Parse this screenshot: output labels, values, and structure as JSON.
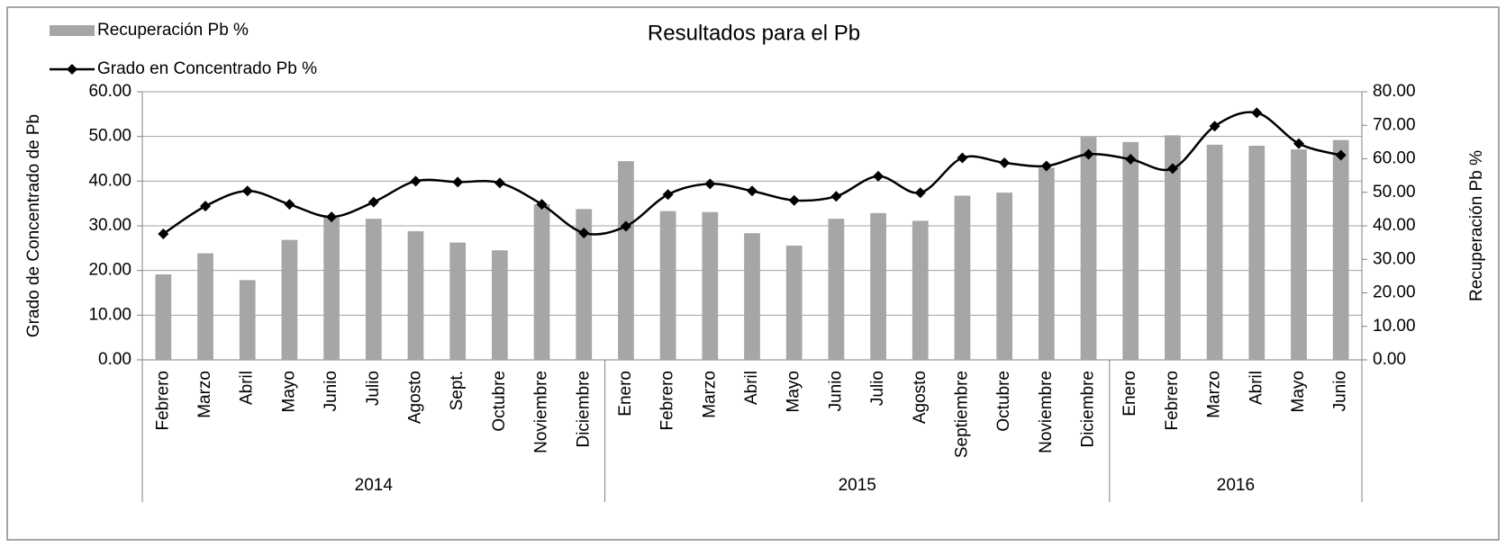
{
  "chart_data": {
    "type": "bar-line",
    "title": "Resultados para el Pb",
    "y_label": "Grado de Concentrado de Pb",
    "y2_label": "Recuperación Pb %",
    "category_groups": [
      {
        "name": "2014",
        "categories": [
          "Febrero",
          "Marzo",
          "Abril",
          "Mayo",
          "Junio",
          "Julio",
          "Agosto",
          "Sept.",
          "Octubre",
          "Noviembre",
          "Diciembre"
        ]
      },
      {
        "name": "2015",
        "categories": [
          "Enero",
          "Febrero",
          "Marzo",
          "Abril",
          "Mayo",
          "Junio",
          "Julio",
          "Agosto",
          "Septiembre",
          "Octubre",
          "Noviembre",
          "Diciembre"
        ]
      },
      {
        "name": "2016",
        "categories": [
          "Enero",
          "Febrero",
          "Marzo",
          "Abril",
          "Mayo",
          "Junio"
        ]
      }
    ],
    "series": [
      {
        "name": "Recuperación Pb %",
        "type": "bar",
        "axis": "y2",
        "color": "#a6a6a6",
        "values": [
          25.5,
          31.8,
          23.8,
          35.8,
          42.5,
          42.1,
          38.4,
          35.0,
          32.7,
          46.4,
          45.0,
          59.3,
          44.4,
          44.1,
          37.8,
          34.1,
          42.1,
          43.8,
          41.5,
          49.0,
          49.9,
          57.3,
          66.5,
          65.0,
          67.0,
          64.2,
          63.9,
          62.8,
          65.6
        ]
      },
      {
        "name": "Grado en Concentrado Pb %",
        "type": "line",
        "axis": "y",
        "color": "#000000",
        "values": [
          28.2,
          34.4,
          37.8,
          34.8,
          32.0,
          35.3,
          40.0,
          39.8,
          39.6,
          34.8,
          28.4,
          29.9,
          37.0,
          39.4,
          37.8,
          35.7,
          36.6,
          41.1,
          37.4,
          45.2,
          44.1,
          43.4,
          46.0,
          44.9,
          42.8,
          52.3,
          55.3,
          48.4,
          45.8
        ]
      }
    ],
    "ylim": [
      0,
      60
    ],
    "yticks": [
      {
        "value": 0,
        "label": "0.00"
      },
      {
        "value": 10,
        "label": "10.00"
      },
      {
        "value": 20,
        "label": "20.00"
      },
      {
        "value": 30,
        "label": "30.00"
      },
      {
        "value": 40,
        "label": "40.00"
      },
      {
        "value": 50,
        "label": "50.00"
      },
      {
        "value": 60,
        "label": "60.00"
      }
    ],
    "y2lim": [
      0,
      80
    ],
    "y2ticks": [
      {
        "value": 0,
        "label": "0.00"
      },
      {
        "value": 10,
        "label": "10.00"
      },
      {
        "value": 20,
        "label": "20.00"
      },
      {
        "value": 30,
        "label": "30.00"
      },
      {
        "value": 40,
        "label": "40.00"
      },
      {
        "value": 50,
        "label": "50.00"
      },
      {
        "value": 60,
        "label": "60.00"
      },
      {
        "value": 70,
        "label": "70.00"
      },
      {
        "value": 80,
        "label": "80.00"
      }
    ],
    "grid": true
  }
}
